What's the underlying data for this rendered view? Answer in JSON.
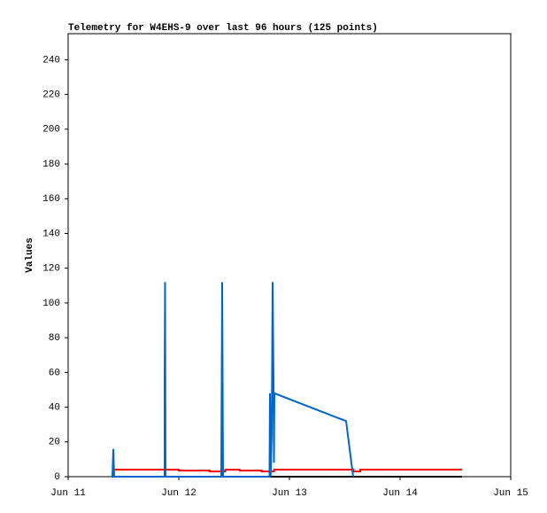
{
  "chart_data": {
    "type": "line",
    "title": "Telemetry for W4EHS-9 over last 96 hours (125 points)",
    "y_label": "Values",
    "xlim": [
      0,
      4
    ],
    "xticks": [
      {
        "value": 0,
        "label": "Jun 11"
      },
      {
        "value": 1,
        "label": "Jun 12"
      },
      {
        "value": 2,
        "label": "Jun 13"
      },
      {
        "value": 3,
        "label": "Jun 14"
      },
      {
        "value": 4,
        "label": "Jun 15"
      }
    ],
    "ylim": [
      0,
      255
    ],
    "yticks": [
      0,
      20,
      40,
      60,
      80,
      100,
      120,
      140,
      160,
      180,
      200,
      220,
      240
    ],
    "grid": false,
    "series": [
      {
        "color": "#000000",
        "x": [
          0.4,
          3.56
        ],
        "values": [
          0,
          0
        ]
      },
      {
        "color": "#ff0000",
        "x": [
          0.4,
          1.0,
          1.0,
          1.28,
          1.28,
          1.42,
          1.42,
          1.55,
          1.55,
          1.75,
          1.75,
          1.86,
          1.86,
          2.58,
          2.58,
          2.64,
          2.64,
          3.56
        ],
        "values": [
          4,
          4,
          3.5,
          3.5,
          3,
          3,
          4,
          4,
          3.5,
          3.5,
          3,
          3,
          4,
          4,
          3,
          3,
          4,
          4
        ]
      },
      {
        "color": "#0066cc",
        "x": [
          0.4,
          0.408,
          0.412,
          0.416,
          0.872,
          0.872,
          0.876,
          0.88,
          1.384,
          1.392,
          1.396,
          1.4,
          1.82,
          1.824,
          1.83,
          1.84,
          1.848,
          1.856,
          1.86,
          1.864,
          2.512,
          2.576
        ],
        "values": [
          0,
          16,
          8,
          0,
          0,
          56,
          112,
          0,
          0,
          112,
          56,
          0,
          0,
          48,
          0,
          24,
          112,
          56,
          8,
          48,
          32,
          0
        ]
      }
    ]
  }
}
